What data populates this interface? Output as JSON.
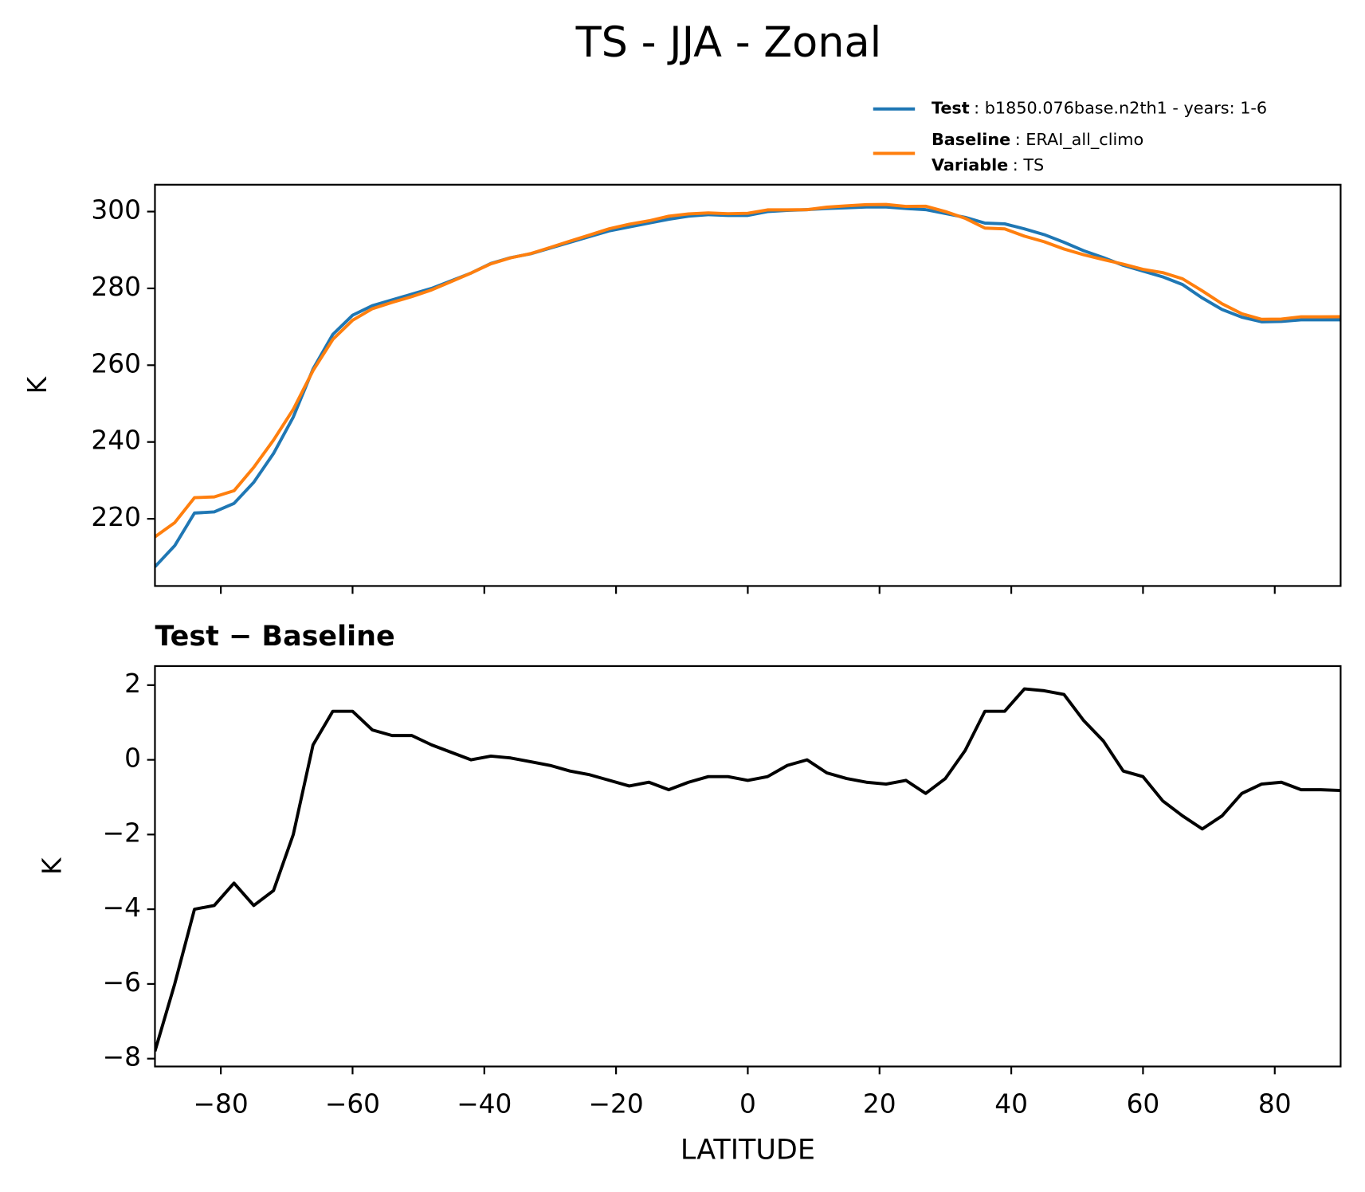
{
  "title": "TS - JJA - Zonal",
  "chart_data": [
    {
      "type": "line",
      "ylabel": "K",
      "x": [
        -90,
        -87,
        -84,
        -81,
        -78,
        -75,
        -72,
        -69,
        -66,
        -63,
        -60,
        -57,
        -54,
        -51,
        -48,
        -45,
        -42,
        -39,
        -36,
        -33,
        -30,
        -27,
        -24,
        -21,
        -18,
        -15,
        -12,
        -9,
        -6,
        -3,
        0,
        3,
        6,
        9,
        12,
        15,
        18,
        21,
        24,
        27,
        30,
        33,
        36,
        39,
        42,
        45,
        48,
        51,
        54,
        57,
        60,
        63,
        66,
        69,
        72,
        75,
        78,
        81,
        84,
        87,
        90
      ],
      "series": [
        {
          "name": "Test",
          "description": ": b1850.076base.n2th1 - years: 1-6",
          "color": "#1f77b4",
          "values": [
            207.5,
            213,
            221.5,
            221.8,
            224,
            229.5,
            237,
            246.5,
            259,
            268,
            273,
            275.5,
            277,
            278.5,
            280,
            282,
            284,
            286.5,
            288,
            289,
            290.5,
            292,
            293.5,
            295,
            296,
            297,
            298,
            298.8,
            299.2,
            299,
            299,
            300,
            300.3,
            300.5,
            300.8,
            301,
            301.2,
            301.2,
            300.8,
            300.5,
            299.5,
            298.5,
            297,
            296.8,
            295.5,
            294,
            292,
            289.8,
            288,
            286,
            284.5,
            283,
            281,
            277.5,
            274.5,
            272.5,
            271.3,
            271.4,
            271.8,
            271.8,
            271.8
          ]
        },
        {
          "name": "Baseline",
          "description": ": ERAI_all_climo",
          "color": "#ff7f0e",
          "values": [
            215.3,
            219,
            225.5,
            225.7,
            227.3,
            233.4,
            240.5,
            248.5,
            258.6,
            266.7,
            271.7,
            274.7,
            276.35,
            277.85,
            279.6,
            281.8,
            284,
            286.4,
            287.95,
            289.05,
            290.65,
            292.3,
            293.9,
            295.55,
            296.7,
            297.6,
            298.8,
            299.4,
            299.65,
            299.45,
            299.55,
            300.45,
            300.45,
            300.5,
            301.15,
            301.5,
            301.8,
            301.85,
            301.35,
            301.4,
            300,
            298.25,
            295.7,
            295.5,
            293.6,
            292.15,
            290.25,
            288.75,
            287.5,
            286.3,
            284.95,
            284.1,
            282.5,
            279.35,
            276,
            273.4,
            271.95,
            272,
            272.6,
            272.6,
            272.62
          ]
        }
      ],
      "legend_note": {
        "name": "Variable",
        "description": ": TS"
      },
      "xlim": [
        -90,
        90
      ],
      "xticks": [
        -80,
        -60,
        -40,
        -20,
        0,
        20,
        40,
        60,
        80
      ],
      "ylim": [
        202.5,
        307
      ],
      "yticks": [
        220,
        240,
        260,
        280,
        300
      ]
    },
    {
      "type": "line",
      "title": "Test − Baseline",
      "xlabel": "LATITUDE",
      "ylabel": "K",
      "color": "#000000",
      "x": [
        -90,
        -87,
        -84,
        -81,
        -78,
        -75,
        -72,
        -69,
        -66,
        -63,
        -60,
        -57,
        -54,
        -51,
        -48,
        -45,
        -42,
        -39,
        -36,
        -33,
        -30,
        -27,
        -24,
        -21,
        -18,
        -15,
        -12,
        -9,
        -6,
        -3,
        0,
        3,
        6,
        9,
        12,
        15,
        18,
        21,
        24,
        27,
        30,
        33,
        36,
        39,
        42,
        45,
        48,
        51,
        54,
        57,
        60,
        63,
        66,
        69,
        72,
        75,
        78,
        81,
        84,
        87,
        90
      ],
      "values": [
        -7.8,
        -6.0,
        -4.0,
        -3.9,
        -3.3,
        -3.9,
        -3.5,
        -2.0,
        0.4,
        1.3,
        1.3,
        0.8,
        0.65,
        0.65,
        0.4,
        0.2,
        0.0,
        0.1,
        0.05,
        -0.05,
        -0.15,
        -0.3,
        -0.4,
        -0.55,
        -0.7,
        -0.6,
        -0.8,
        -0.6,
        -0.45,
        -0.45,
        -0.55,
        -0.45,
        -0.15,
        0.0,
        -0.35,
        -0.5,
        -0.6,
        -0.65,
        -0.55,
        -0.9,
        -0.5,
        0.25,
        1.3,
        1.3,
        1.9,
        1.85,
        1.75,
        1.05,
        0.5,
        -0.3,
        -0.45,
        -1.1,
        -1.5,
        -1.85,
        -1.5,
        -0.9,
        -0.65,
        -0.6,
        -0.8,
        -0.8,
        -0.82
      ],
      "xlim": [
        -90,
        90
      ],
      "xticks": [
        {
          "value": -80,
          "label": "−80"
        },
        {
          "value": -60,
          "label": "−60"
        },
        {
          "value": -40,
          "label": "−40"
        },
        {
          "value": -20,
          "label": "−20"
        },
        0,
        20,
        40,
        60,
        80
      ],
      "ylim": [
        -8.21,
        2.51
      ],
      "yticks": [
        {
          "value": -8,
          "label": "−8"
        },
        {
          "value": -6,
          "label": "−6"
        },
        {
          "value": -4,
          "label": "−4"
        },
        {
          "value": -2,
          "label": "−2"
        },
        0,
        2
      ]
    }
  ]
}
